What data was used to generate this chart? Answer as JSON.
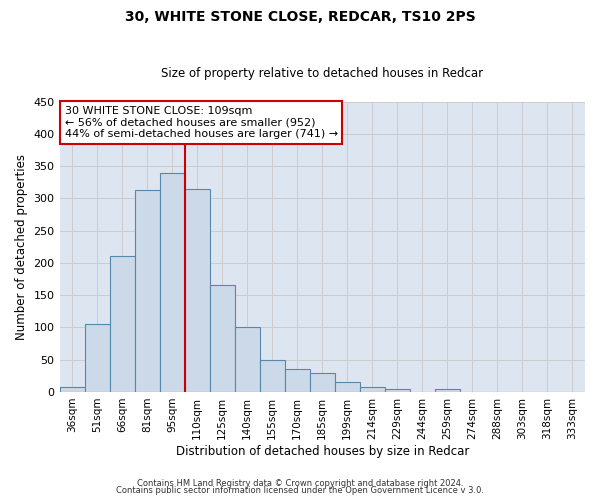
{
  "title": "30, WHITE STONE CLOSE, REDCAR, TS10 2PS",
  "subtitle": "Size of property relative to detached houses in Redcar",
  "xlabel": "Distribution of detached houses by size in Redcar",
  "ylabel": "Number of detached properties",
  "bin_labels": [
    "36sqm",
    "51sqm",
    "66sqm",
    "81sqm",
    "95sqm",
    "110sqm",
    "125sqm",
    "140sqm",
    "155sqm",
    "170sqm",
    "185sqm",
    "199sqm",
    "214sqm",
    "229sqm",
    "244sqm",
    "259sqm",
    "274sqm",
    "288sqm",
    "303sqm",
    "318sqm",
    "333sqm"
  ],
  "bar_heights": [
    7,
    105,
    210,
    313,
    340,
    315,
    165,
    100,
    50,
    35,
    30,
    15,
    8,
    5,
    0,
    5,
    0,
    0,
    0,
    0,
    0
  ],
  "bar_color": "#ccd9e8",
  "bar_edge_color": "#5588aa",
  "property_line_x": 5,
  "annotation_title": "30 WHITE STONE CLOSE: 109sqm",
  "annotation_line1": "← 56% of detached houses are smaller (952)",
  "annotation_line2": "44% of semi-detached houses are larger (741) →",
  "annotation_box_color": "#ffffff",
  "annotation_box_edge_color": "#cc0000",
  "vline_color": "#cc0000",
  "ylim": [
    0,
    450
  ],
  "footer_line1": "Contains HM Land Registry data © Crown copyright and database right 2024.",
  "footer_line2": "Contains public sector information licensed under the Open Government Licence v 3.0.",
  "grid_color": "#cccccc",
  "bg_color": "#dde6f0"
}
